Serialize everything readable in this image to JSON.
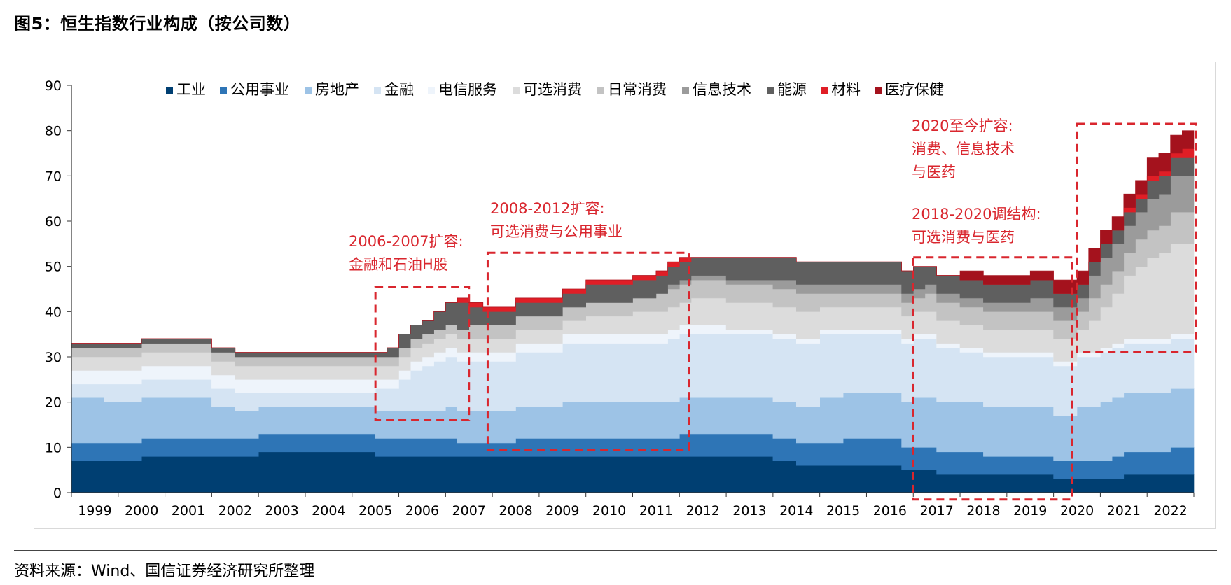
{
  "header": {
    "title": "图5：恒生指数行业构成（按公司数）"
  },
  "footer": {
    "source": "资料来源：Wind、国信证券经济研究所整理"
  },
  "colors": {
    "industrial": "#003F72",
    "utilities": "#2E75B6",
    "realestate": "#9DC3E6",
    "finance": "#D5E4F3",
    "telecom": "#EEF4FB",
    "discretionary": "#DCDCDC",
    "staples": "#C3C3C3",
    "it": "#9B9B9B",
    "energy": "#5F5F5F",
    "materials": "#E01E26",
    "healthcare": "#A4121D",
    "annotation": "#D9262E"
  },
  "annotations": [
    {
      "lines": [
        "2006-2007扩容:",
        "金融和石油H股"
      ],
      "x_range": [
        2005.5,
        2007.5
      ],
      "y_range": [
        16,
        45.5
      ]
    },
    {
      "lines": [
        "2008-2012扩容:",
        "可选消费与公用事业"
      ],
      "x_range": [
        2007.9,
        2012.2
      ],
      "y_range": [
        9.5,
        53
      ]
    },
    {
      "lines": [
        "2018-2020调结构:",
        "可选消费与医药"
      ],
      "x_range": [
        2017.0,
        2020.4
      ],
      "y_range": [
        -1.5,
        52
      ]
    },
    {
      "lines": [
        "2020至今扩容:",
        "消费、信息技术",
        "与医药"
      ],
      "x_range": [
        2020.5,
        2023.05
      ],
      "y_range": [
        31,
        81.5
      ]
    }
  ],
  "chart_data": {
    "type": "area",
    "style": "stacked-step",
    "title": "图5：恒生指数行业构成（按公司数）",
    "ylim": [
      0,
      90
    ],
    "yticks": [
      0,
      10,
      20,
      30,
      40,
      50,
      60,
      70,
      80,
      90
    ],
    "xlim": [
      1999.0,
      2023.0
    ],
    "x_tick_labels": [
      "1999",
      "2000",
      "2001",
      "2002",
      "2003",
      "2004",
      "2005",
      "2006",
      "2007",
      "2008",
      "2009",
      "2010",
      "2011",
      "2012",
      "2013",
      "2014",
      "2015",
      "2016",
      "2017",
      "2018",
      "2019",
      "2020",
      "2021",
      "2022"
    ],
    "legend_position": "top",
    "x": [
      1999.0,
      1999.7,
      2000.5,
      2001.3,
      2002.0,
      2002.5,
      2003.0,
      2005.0,
      2005.5,
      2005.75,
      2006.0,
      2006.25,
      2006.5,
      2006.75,
      2007.0,
      2007.25,
      2007.5,
      2007.8,
      2008.0,
      2008.5,
      2009.0,
      2009.5,
      2010.0,
      2010.5,
      2011.0,
      2011.5,
      2011.75,
      2012.0,
      2012.25,
      2012.5,
      2013.0,
      2014.0,
      2014.5,
      2015.0,
      2015.5,
      2016.0,
      2016.5,
      2016.75,
      2017.0,
      2017.25,
      2017.5,
      2018.0,
      2018.5,
      2019.0,
      2019.5,
      2020.0,
      2020.25,
      2020.5,
      2020.75,
      2021.0,
      2021.25,
      2021.5,
      2021.75,
      2022.0,
      2022.25,
      2022.5,
      2022.75,
      2023.0
    ],
    "series": [
      {
        "name": "工业",
        "key": "industrial",
        "values": [
          7,
          7,
          8,
          8,
          8,
          8,
          9,
          9,
          8,
          8,
          8,
          8,
          8,
          8,
          8,
          8,
          8,
          8,
          8,
          8,
          8,
          8,
          8,
          8,
          8,
          8,
          8,
          8,
          8,
          8,
          8,
          7,
          6,
          6,
          6,
          6,
          6,
          5,
          5,
          5,
          4,
          4,
          4,
          4,
          4,
          3,
          3,
          3,
          3,
          3,
          3,
          4,
          4,
          4,
          4,
          4,
          4,
          4
        ]
      },
      {
        "name": "公用事业",
        "key": "utilities",
        "values": [
          4,
          4,
          4,
          4,
          4,
          4,
          4,
          4,
          4,
          4,
          4,
          4,
          4,
          4,
          4,
          3,
          3,
          3,
          3,
          4,
          4,
          4,
          4,
          4,
          4,
          4,
          4,
          5,
          5,
          5,
          5,
          5,
          5,
          5,
          6,
          6,
          6,
          5,
          5,
          5,
          5,
          5,
          4,
          4,
          4,
          4,
          4,
          4,
          4,
          4,
          5,
          5,
          5,
          5,
          5,
          6,
          6,
          6
        ]
      },
      {
        "name": "房地产",
        "key": "realestate",
        "values": [
          10,
          9,
          9,
          9,
          7,
          6,
          6,
          6,
          6,
          6,
          6,
          6,
          6,
          6,
          7,
          7,
          7,
          7,
          7,
          7,
          7,
          8,
          8,
          8,
          8,
          8,
          8,
          8,
          8,
          8,
          8,
          8,
          8,
          10,
          10,
          10,
          10,
          10,
          11,
          11,
          11,
          11,
          11,
          11,
          11,
          10,
          10,
          12,
          12,
          13,
          13,
          13,
          13,
          13,
          13,
          13,
          13,
          12
        ]
      },
      {
        "name": "金融",
        "key": "finance",
        "values": [
          3,
          4,
          4,
          4,
          4,
          4,
          3,
          3,
          5,
          5,
          7,
          9,
          10,
          11,
          11,
          11,
          11,
          11,
          11,
          12,
          12,
          13,
          13,
          13,
          13,
          13,
          14,
          14,
          14,
          14,
          14,
          14,
          14,
          14,
          13,
          13,
          13,
          13,
          13,
          13,
          12,
          11,
          11,
          11,
          11,
          11,
          11,
          11,
          11,
          11,
          11,
          11,
          11,
          11,
          11,
          11,
          11,
          11
        ]
      },
      {
        "name": "电信服务",
        "key": "telecom",
        "values": [
          3,
          3,
          3,
          3,
          3,
          3,
          3,
          3,
          2,
          2,
          2,
          2,
          2,
          2,
          2,
          2,
          2,
          2,
          2,
          2,
          2,
          2,
          2,
          2,
          2,
          2,
          2,
          2,
          2,
          2,
          1,
          1,
          1,
          1,
          1,
          1,
          1,
          1,
          1,
          1,
          1,
          1,
          1,
          1,
          1,
          1,
          1,
          1,
          1,
          1,
          1,
          1,
          1,
          1,
          1,
          1,
          1,
          1
        ]
      },
      {
        "name": "可选消费",
        "key": "discretionary",
        "values": [
          3,
          3,
          3,
          3,
          3,
          3,
          3,
          3,
          3,
          3,
          3,
          3,
          3,
          3,
          3,
          3,
          3,
          3,
          3,
          3,
          3,
          3,
          4,
          4,
          5,
          5,
          5,
          5,
          6,
          6,
          6,
          6,
          6,
          5,
          5,
          5,
          5,
          5,
          5,
          5,
          5,
          5,
          5,
          5,
          5,
          5,
          5,
          5,
          7,
          9,
          11,
          14,
          16,
          18,
          19,
          20,
          20,
          20
        ]
      },
      {
        "name": "日常消费",
        "key": "staples",
        "values": [
          2,
          2,
          2,
          2,
          2,
          2,
          2,
          2,
          2,
          2,
          2,
          2,
          2,
          2,
          2,
          2,
          3,
          3,
          3,
          3,
          3,
          3,
          3,
          3,
          3,
          4,
          4,
          4,
          4,
          4,
          4,
          4,
          4,
          3,
          3,
          3,
          3,
          3,
          3,
          4,
          4,
          4,
          4,
          4,
          4,
          4,
          4,
          4,
          5,
          5,
          5,
          5,
          6,
          6,
          6,
          7,
          7,
          7
        ]
      },
      {
        "name": "信息技术",
        "key": "it",
        "values": [
          0,
          0,
          0,
          0,
          0,
          0,
          0,
          0,
          0,
          0,
          0,
          0,
          0,
          0,
          0,
          0,
          0,
          0,
          0,
          0,
          0,
          0,
          0,
          0,
          0,
          0,
          1,
          1,
          1,
          1,
          1,
          2,
          2,
          2,
          2,
          2,
          2,
          2,
          2,
          2,
          2,
          2,
          2,
          2,
          3,
          3,
          3,
          3,
          5,
          6,
          6,
          6,
          6,
          7,
          7,
          8,
          8,
          8
        ]
      },
      {
        "name": "能源",
        "key": "energy",
        "values": [
          1,
          1,
          1,
          1,
          1,
          1,
          1,
          1,
          1,
          2,
          3,
          3,
          3,
          4,
          5,
          6,
          4,
          3,
          3,
          3,
          3,
          3,
          4,
          4,
          4,
          4,
          4,
          4,
          4,
          4,
          5,
          5,
          5,
          5,
          5,
          5,
          5,
          5,
          5,
          4,
          4,
          4,
          4,
          4,
          4,
          3,
          3,
          3,
          3,
          3,
          3,
          3,
          3,
          4,
          4,
          4,
          4,
          4
        ]
      },
      {
        "name": "材料",
        "key": "materials",
        "values": [
          0,
          0,
          0,
          0,
          0,
          0,
          0,
          0,
          0,
          0,
          0,
          0,
          0,
          0,
          0,
          1,
          1,
          1,
          1,
          1,
          1,
          1,
          1,
          1,
          1,
          1,
          1,
          1,
          0,
          0,
          0,
          0,
          0,
          0,
          0,
          0,
          0,
          0,
          0,
          0,
          0,
          0,
          0,
          0,
          0,
          0,
          0,
          0,
          0,
          0,
          0,
          1,
          1,
          1,
          1,
          1,
          2,
          2
        ]
      },
      {
        "name": "医疗保健",
        "key": "healthcare",
        "values": [
          0,
          0,
          0,
          0,
          0,
          0,
          0,
          0,
          0,
          0,
          0,
          0,
          0,
          0,
          0,
          0,
          0,
          0,
          0,
          0,
          0,
          0,
          0,
          0,
          0,
          0,
          0,
          0,
          0,
          0,
          0,
          0,
          0,
          0,
          0,
          0,
          0,
          0,
          0,
          0,
          0,
          2,
          2,
          2,
          2,
          3,
          3,
          3,
          3,
          3,
          3,
          3,
          3,
          4,
          4,
          4,
          4,
          4
        ]
      }
    ]
  }
}
